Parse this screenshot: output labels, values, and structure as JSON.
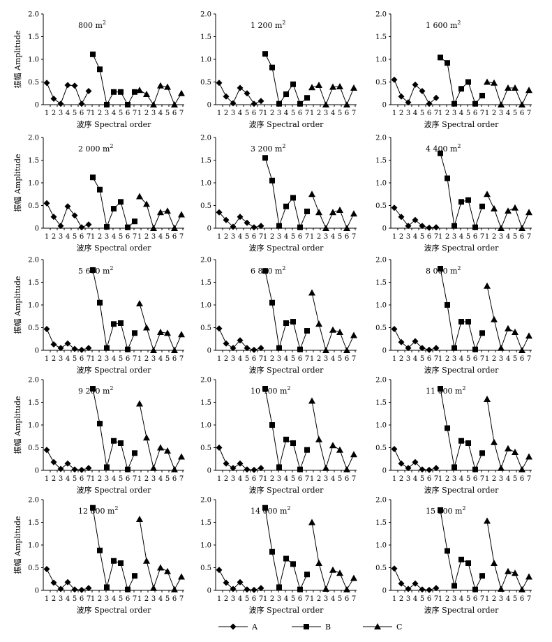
{
  "figure": {
    "legend": [
      {
        "name": "A",
        "marker": "diamond"
      },
      {
        "name": "B",
        "marker": "square"
      },
      {
        "name": "C",
        "marker": "triangle"
      }
    ]
  },
  "chart_data": [
    {
      "type": "line",
      "title": "800 m",
      "title_sup": "2",
      "xlabel": "波序 Spectral order",
      "ylabel": "振幅 Amplitude",
      "ylim": [
        0,
        2.0
      ],
      "yticks": [
        "0",
        "0.5",
        "1.0",
        "1.5",
        "2.0"
      ],
      "categories": [
        "1",
        "2",
        "3",
        "4",
        "5",
        "6",
        "7"
      ],
      "series": [
        {
          "name": "A",
          "values": [
            0.48,
            0.13,
            0.02,
            0.43,
            0.42,
            0.02,
            0.3
          ]
        },
        {
          "name": "B",
          "values": [
            1.11,
            0.78,
            0.0,
            0.28,
            0.28,
            0.0,
            0.28
          ]
        },
        {
          "name": "C",
          "values": [
            0.32,
            0.23,
            0.0,
            0.42,
            0.39,
            0.0,
            0.25
          ]
        }
      ]
    },
    {
      "type": "line",
      "title": "1 200 m",
      "title_sup": "2",
      "xlabel": "波序 Spectral order",
      "ylabel": "",
      "ylim": [
        0,
        2.0
      ],
      "yticks": [
        "0",
        "0.5",
        "1.0",
        "1.5",
        "2.0"
      ],
      "categories": [
        "1",
        "2",
        "3",
        "4",
        "5",
        "6",
        "7"
      ],
      "series": [
        {
          "name": "A",
          "values": [
            0.48,
            0.18,
            0.03,
            0.37,
            0.25,
            0.02,
            0.08
          ]
        },
        {
          "name": "B",
          "values": [
            1.12,
            0.82,
            0.02,
            0.23,
            0.45,
            0.02,
            0.15
          ]
        },
        {
          "name": "C",
          "values": [
            0.38,
            0.43,
            0.0,
            0.39,
            0.4,
            0.0,
            0.37
          ]
        }
      ]
    },
    {
      "type": "line",
      "title": "1 600 m",
      "title_sup": "2",
      "xlabel": "波序 Spectral order",
      "ylabel": "",
      "ylim": [
        0,
        2.0
      ],
      "yticks": [
        "0",
        "0.5",
        "1.0",
        "1.5",
        "2.0"
      ],
      "categories": [
        "1",
        "2",
        "3",
        "4",
        "5",
        "6",
        "7"
      ],
      "series": [
        {
          "name": "A",
          "values": [
            0.55,
            0.18,
            0.05,
            0.44,
            0.3,
            0.02,
            0.15
          ]
        },
        {
          "name": "B",
          "values": [
            1.04,
            0.92,
            0.02,
            0.35,
            0.5,
            0.02,
            0.2
          ]
        },
        {
          "name": "C",
          "values": [
            0.5,
            0.48,
            0.0,
            0.37,
            0.37,
            0.0,
            0.32
          ]
        }
      ]
    },
    {
      "type": "line",
      "title": "2 000 m",
      "title_sup": "2",
      "xlabel": "波序 Spectral order",
      "ylabel": "振幅 Amplitude",
      "ylim": [
        0,
        2.0
      ],
      "yticks": [
        "0",
        "0.5",
        "1.0",
        "1.5",
        "2.0"
      ],
      "categories": [
        "1",
        "2",
        "3",
        "4",
        "5",
        "6",
        "7"
      ],
      "series": [
        {
          "name": "A",
          "values": [
            0.55,
            0.25,
            0.05,
            0.48,
            0.28,
            0.02,
            0.08
          ]
        },
        {
          "name": "B",
          "values": [
            1.12,
            0.85,
            0.03,
            0.43,
            0.58,
            0.02,
            0.15
          ]
        },
        {
          "name": "C",
          "values": [
            0.7,
            0.53,
            0.0,
            0.35,
            0.38,
            0.0,
            0.3
          ]
        }
      ]
    },
    {
      "type": "line",
      "title": "3 200 m",
      "title_sup": "2",
      "xlabel": "波序 Spectral order",
      "ylabel": "",
      "ylim": [
        0,
        2.0
      ],
      "yticks": [
        "0",
        "0.5",
        "1.0",
        "1.5",
        "2.0"
      ],
      "categories": [
        "1",
        "2",
        "3",
        "4",
        "5",
        "6",
        "7"
      ],
      "series": [
        {
          "name": "A",
          "values": [
            0.35,
            0.18,
            0.03,
            0.25,
            0.12,
            0.02,
            0.05
          ]
        },
        {
          "name": "B",
          "values": [
            1.55,
            1.05,
            0.05,
            0.48,
            0.67,
            0.02,
            0.37
          ]
        },
        {
          "name": "C",
          "values": [
            0.75,
            0.35,
            0.0,
            0.35,
            0.4,
            0.0,
            0.32
          ]
        }
      ]
    },
    {
      "type": "line",
      "title": "4 400 m",
      "title_sup": "2",
      "xlabel": "波序 Spectral order",
      "ylabel": "",
      "ylim": [
        0,
        2.0
      ],
      "yticks": [
        "0",
        "0.5",
        "1.0",
        "1.5",
        "2.0"
      ],
      "categories": [
        "1",
        "2",
        "3",
        "4",
        "5",
        "6",
        "7"
      ],
      "series": [
        {
          "name": "A",
          "values": [
            0.45,
            0.25,
            0.05,
            0.18,
            0.05,
            0.01,
            0.02
          ]
        },
        {
          "name": "B",
          "values": [
            1.65,
            1.1,
            0.05,
            0.58,
            0.62,
            0.02,
            0.48
          ]
        },
        {
          "name": "C",
          "values": [
            0.75,
            0.43,
            0.0,
            0.38,
            0.45,
            0.0,
            0.35
          ]
        }
      ]
    },
    {
      "type": "line",
      "title": "5 600 m",
      "title_sup": "2",
      "xlabel": "波序 Spectral order",
      "ylabel": "振幅 Amplitude",
      "ylim": [
        0,
        2.0
      ],
      "yticks": [
        "0",
        "0.5",
        "1.0",
        "1.5",
        "2.0"
      ],
      "categories": [
        "1",
        "2",
        "3",
        "4",
        "5",
        "6",
        "7"
      ],
      "series": [
        {
          "name": "A",
          "values": [
            0.47,
            0.13,
            0.05,
            0.15,
            0.03,
            0.01,
            0.05
          ]
        },
        {
          "name": "B",
          "values": [
            1.77,
            1.05,
            0.05,
            0.58,
            0.6,
            0.02,
            0.38
          ]
        },
        {
          "name": "C",
          "values": [
            1.03,
            0.5,
            0.0,
            0.4,
            0.38,
            0.0,
            0.35
          ]
        }
      ]
    },
    {
      "type": "line",
      "title": "6 800 m",
      "title_sup": "2",
      "xlabel": "波序 Spectral order",
      "ylabel": "",
      "ylim": [
        0,
        2.0
      ],
      "yticks": [
        "0",
        "0.5",
        "1.0",
        "1.5",
        "2.0"
      ],
      "categories": [
        "1",
        "2",
        "3",
        "4",
        "5",
        "6",
        "7"
      ],
      "series": [
        {
          "name": "A",
          "values": [
            0.48,
            0.15,
            0.05,
            0.22,
            0.05,
            0.01,
            0.05
          ]
        },
        {
          "name": "B",
          "values": [
            1.75,
            1.05,
            0.05,
            0.6,
            0.63,
            0.02,
            0.43
          ]
        },
        {
          "name": "C",
          "values": [
            1.27,
            0.58,
            0.0,
            0.45,
            0.4,
            0.0,
            0.33
          ]
        }
      ]
    },
    {
      "type": "line",
      "title": "8 000 m",
      "title_sup": "2",
      "xlabel": "波序 Spectral order",
      "ylabel": "",
      "ylim": [
        0,
        2.0
      ],
      "yticks": [
        "0",
        "0.5",
        "1.0",
        "1.5",
        "2.0"
      ],
      "categories": [
        "1",
        "2",
        "3",
        "4",
        "5",
        "6",
        "7"
      ],
      "series": [
        {
          "name": "A",
          "values": [
            0.47,
            0.18,
            0.05,
            0.2,
            0.05,
            0.01,
            0.05
          ]
        },
        {
          "name": "B",
          "values": [
            1.8,
            1.0,
            0.05,
            0.63,
            0.63,
            0.02,
            0.38
          ]
        },
        {
          "name": "C",
          "values": [
            1.42,
            0.68,
            0.05,
            0.48,
            0.4,
            0.0,
            0.32
          ]
        }
      ]
    },
    {
      "type": "line",
      "title": "9 200 m",
      "title_sup": "2",
      "xlabel": "波序 Spectral order",
      "ylabel": "振幅 Amplitude",
      "ylim": [
        0,
        2.0
      ],
      "yticks": [
        "0",
        "0.5",
        "1.0",
        "1.5",
        "2.0"
      ],
      "categories": [
        "1",
        "2",
        "3",
        "4",
        "5",
        "6",
        "7"
      ],
      "series": [
        {
          "name": "A",
          "values": [
            0.45,
            0.18,
            0.03,
            0.15,
            0.02,
            0.01,
            0.05
          ]
        },
        {
          "name": "B",
          "values": [
            1.8,
            1.03,
            0.07,
            0.65,
            0.6,
            0.02,
            0.38
          ]
        },
        {
          "name": "C",
          "values": [
            1.47,
            0.72,
            0.05,
            0.5,
            0.43,
            0.02,
            0.3
          ]
        }
      ]
    },
    {
      "type": "line",
      "title": "10 400 m",
      "title_sup": "2",
      "xlabel": "波序 Spectral order",
      "ylabel": "",
      "ylim": [
        0,
        2.0
      ],
      "yticks": [
        "0",
        "0.5",
        "1.0",
        "1.5",
        "2.0"
      ],
      "categories": [
        "1",
        "2",
        "3",
        "4",
        "5",
        "6",
        "7"
      ],
      "series": [
        {
          "name": "A",
          "values": [
            0.5,
            0.15,
            0.05,
            0.15,
            0.02,
            0.01,
            0.05
          ]
        },
        {
          "name": "B",
          "values": [
            1.8,
            1.0,
            0.07,
            0.68,
            0.6,
            0.02,
            0.45
          ]
        },
        {
          "name": "C",
          "values": [
            1.53,
            0.68,
            0.05,
            0.55,
            0.45,
            0.02,
            0.35
          ]
        }
      ]
    },
    {
      "type": "line",
      "title": "11 600 m",
      "title_sup": "2",
      "xlabel": "波序 Spectral order",
      "ylabel": "",
      "ylim": [
        0,
        2.0
      ],
      "yticks": [
        "0",
        "0.5",
        "1.0",
        "1.5",
        "2.0"
      ],
      "categories": [
        "1",
        "2",
        "3",
        "4",
        "5",
        "6",
        "7"
      ],
      "series": [
        {
          "name": "A",
          "values": [
            0.47,
            0.15,
            0.05,
            0.18,
            0.02,
            0.01,
            0.05
          ]
        },
        {
          "name": "B",
          "values": [
            1.8,
            0.93,
            0.07,
            0.65,
            0.6,
            0.02,
            0.38
          ]
        },
        {
          "name": "C",
          "values": [
            1.57,
            0.62,
            0.05,
            0.48,
            0.4,
            0.02,
            0.3
          ]
        }
      ]
    },
    {
      "type": "line",
      "title": "12 800 m",
      "title_sup": "2",
      "xlabel": "波序 Spectral order",
      "ylabel": "振幅 Amplitude",
      "ylim": [
        0,
        2.0
      ],
      "yticks": [
        "0",
        "0.5",
        "1.0",
        "1.5",
        "2.0"
      ],
      "categories": [
        "1",
        "2",
        "3",
        "4",
        "5",
        "6",
        "7"
      ],
      "series": [
        {
          "name": "A",
          "values": [
            0.47,
            0.17,
            0.03,
            0.18,
            0.02,
            0.01,
            0.05
          ]
        },
        {
          "name": "B",
          "values": [
            1.82,
            0.88,
            0.07,
            0.65,
            0.6,
            0.02,
            0.32
          ]
        },
        {
          "name": "C",
          "values": [
            1.57,
            0.65,
            0.05,
            0.5,
            0.42,
            0.02,
            0.3
          ]
        }
      ]
    },
    {
      "type": "line",
      "title": "14 000 m",
      "title_sup": "2",
      "xlabel": "波序 Spectral order",
      "ylabel": "",
      "ylim": [
        0,
        2.0
      ],
      "yticks": [
        "0",
        "0.5",
        "1.0",
        "1.5",
        "2.0"
      ],
      "categories": [
        "1",
        "2",
        "3",
        "4",
        "5",
        "6",
        "7"
      ],
      "series": [
        {
          "name": "A",
          "values": [
            0.45,
            0.17,
            0.03,
            0.18,
            0.02,
            0.01,
            0.05
          ]
        },
        {
          "name": "B",
          "values": [
            1.82,
            0.85,
            0.07,
            0.7,
            0.58,
            0.02,
            0.35
          ]
        },
        {
          "name": "C",
          "values": [
            1.5,
            0.6,
            0.03,
            0.45,
            0.38,
            0.02,
            0.27
          ]
        }
      ]
    },
    {
      "type": "line",
      "title": "15 200 m",
      "title_sup": "2",
      "xlabel": "波序 Spectral order",
      "ylabel": "",
      "ylim": [
        0,
        2.0
      ],
      "yticks": [
        "0",
        "0.5",
        "1.0",
        "1.5",
        "2.0"
      ],
      "categories": [
        "1",
        "2",
        "3",
        "4",
        "5",
        "6",
        "7"
      ],
      "series": [
        {
          "name": "A",
          "values": [
            0.48,
            0.15,
            0.03,
            0.15,
            0.02,
            0.01,
            0.05
          ]
        },
        {
          "name": "B",
          "values": [
            1.77,
            0.87,
            0.1,
            0.68,
            0.6,
            0.02,
            0.32
          ]
        },
        {
          "name": "C",
          "values": [
            1.53,
            0.6,
            0.03,
            0.42,
            0.38,
            0.02,
            0.3
          ]
        }
      ]
    }
  ]
}
